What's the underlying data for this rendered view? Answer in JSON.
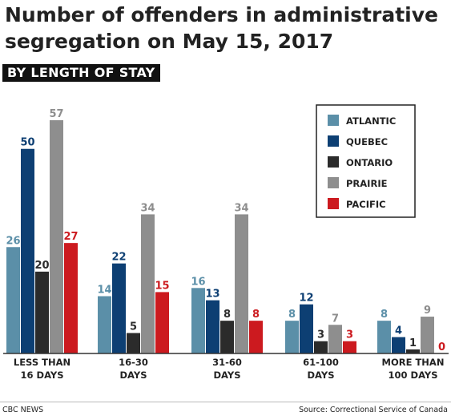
{
  "header": {
    "title": "Number of offenders in administrative segregation on May 15, 2017",
    "subtitle": "BY LENGTH OF STAY"
  },
  "footer": {
    "credit": "CBC NEWS",
    "source": "Source: Correctional Service of Canada"
  },
  "colors": {
    "ATLANTIC": "#5b8fa8",
    "QUEBEC": "#0d3f73",
    "ONTARIO": "#2b2b2b",
    "PRAIRIE": "#8e8e8e",
    "PACIFIC": "#cc1a1f"
  },
  "chart_data": {
    "type": "bar",
    "title": "Number of offenders in administrative segregation on May 15, 2017",
    "subtitle": "BY LENGTH OF STAY",
    "categories": [
      [
        "LESS THAN",
        "16 DAYS"
      ],
      [
        "16-30",
        "DAYS"
      ],
      [
        "31-60",
        "DAYS"
      ],
      [
        "61-100",
        "DAYS"
      ],
      [
        "MORE THAN",
        "100 DAYS"
      ]
    ],
    "series": [
      {
        "name": "ATLANTIC",
        "values": [
          26,
          14,
          16,
          8,
          8
        ]
      },
      {
        "name": "QUEBEC",
        "values": [
          50,
          22,
          13,
          12,
          4
        ]
      },
      {
        "name": "ONTARIO",
        "values": [
          20,
          5,
          8,
          3,
          1
        ]
      },
      {
        "name": "PRAIRIE",
        "values": [
          57,
          34,
          34,
          7,
          9
        ]
      },
      {
        "name": "PACIFIC",
        "values": [
          27,
          15,
          8,
          3,
          0
        ]
      }
    ],
    "ylim": [
      0,
      57
    ],
    "legend": "top-right",
    "grid": false,
    "data_labels": true
  }
}
